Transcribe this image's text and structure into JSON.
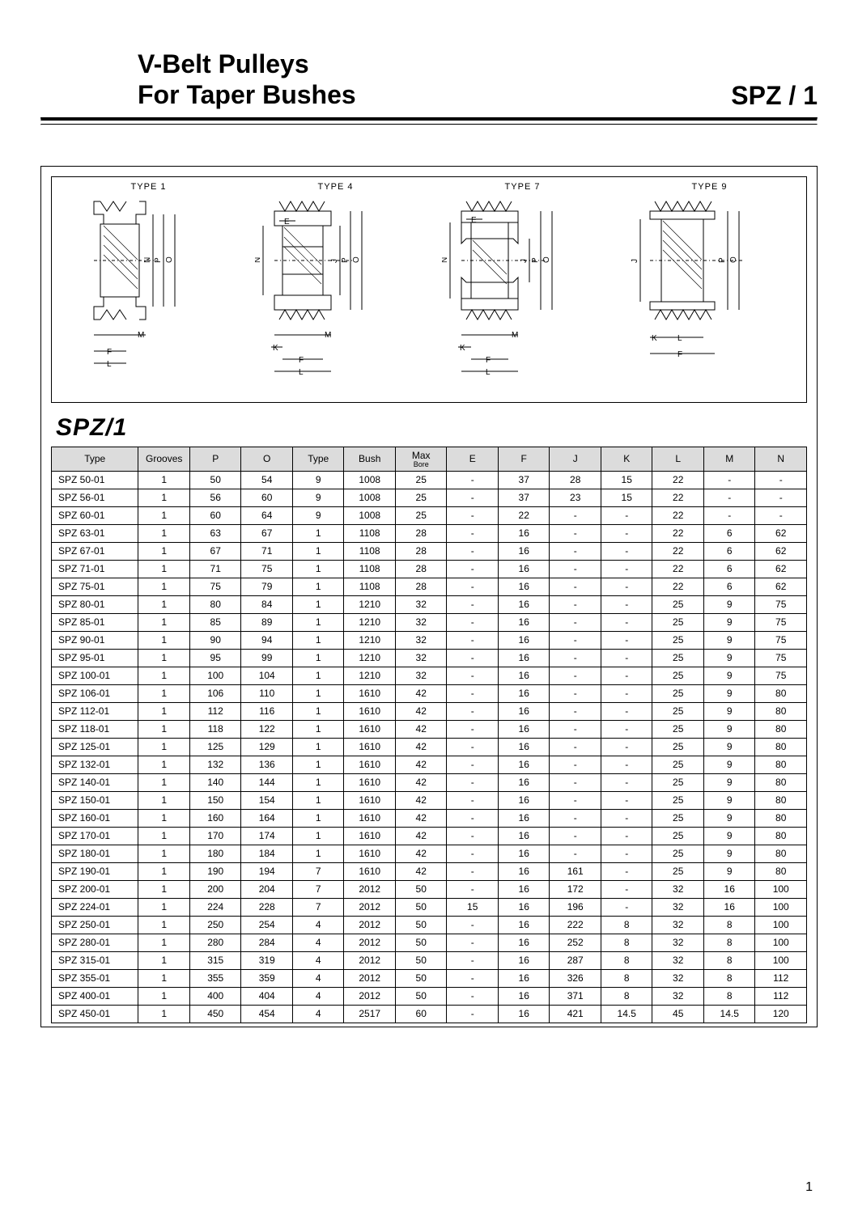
{
  "header": {
    "title_line1": "V-Belt  Pulleys",
    "title_line2": "For Taper Bushes",
    "code": "SPZ / 1"
  },
  "diagrams": {
    "labels": [
      "TYPE 1",
      "TYPE 4",
      "TYPE 7",
      "TYPE 9"
    ],
    "dim_letters": {
      "E": "E",
      "N": "N",
      "J": "J",
      "P": "P",
      "O": "O",
      "K": "K",
      "L": "L",
      "M": "M",
      "F": "F"
    }
  },
  "series_heading": "SPZ/1",
  "table": {
    "columns": [
      "Type",
      "Grooves",
      "P",
      "O",
      "Type",
      "Bush",
      "Max\nBore",
      "E",
      "F",
      "J",
      "K",
      "L",
      "M",
      "N"
    ],
    "col_widths_pct": [
      11,
      6.5,
      6.5,
      6.5,
      6.5,
      6.5,
      6.5,
      6.5,
      6.5,
      6.5,
      6.5,
      6.5,
      6.5,
      6.5
    ],
    "header_bg": "#dcdcdc",
    "border_color": "#000000",
    "rows": [
      [
        "SPZ 50-01",
        "1",
        "50",
        "54",
        "9",
        "1008",
        "25",
        "-",
        "37",
        "28",
        "15",
        "22",
        "-",
        "-"
      ],
      [
        "SPZ 56-01",
        "1",
        "56",
        "60",
        "9",
        "1008",
        "25",
        "-",
        "37",
        "23",
        "15",
        "22",
        "-",
        "-"
      ],
      [
        "SPZ 60-01",
        "1",
        "60",
        "64",
        "9",
        "1008",
        "25",
        "-",
        "22",
        "-",
        "-",
        "22",
        "-",
        "-"
      ],
      [
        "SPZ 63-01",
        "1",
        "63",
        "67",
        "1",
        "1108",
        "28",
        "-",
        "16",
        "-",
        "-",
        "22",
        "6",
        "62"
      ],
      [
        "SPZ 67-01",
        "1",
        "67",
        "71",
        "1",
        "1108",
        "28",
        "-",
        "16",
        "-",
        "-",
        "22",
        "6",
        "62"
      ],
      [
        "SPZ 71-01",
        "1",
        "71",
        "75",
        "1",
        "1108",
        "28",
        "-",
        "16",
        "-",
        "-",
        "22",
        "6",
        "62"
      ],
      [
        "SPZ 75-01",
        "1",
        "75",
        "79",
        "1",
        "1108",
        "28",
        "-",
        "16",
        "-",
        "-",
        "22",
        "6",
        "62"
      ],
      [
        "SPZ 80-01",
        "1",
        "80",
        "84",
        "1",
        "1210",
        "32",
        "-",
        "16",
        "-",
        "-",
        "25",
        "9",
        "75"
      ],
      [
        "SPZ 85-01",
        "1",
        "85",
        "89",
        "1",
        "1210",
        "32",
        "-",
        "16",
        "-",
        "-",
        "25",
        "9",
        "75"
      ],
      [
        "SPZ 90-01",
        "1",
        "90",
        "94",
        "1",
        "1210",
        "32",
        "-",
        "16",
        "-",
        "-",
        "25",
        "9",
        "75"
      ],
      [
        "SPZ 95-01",
        "1",
        "95",
        "99",
        "1",
        "1210",
        "32",
        "-",
        "16",
        "-",
        "-",
        "25",
        "9",
        "75"
      ],
      [
        "SPZ 100-01",
        "1",
        "100",
        "104",
        "1",
        "1210",
        "32",
        "-",
        "16",
        "-",
        "-",
        "25",
        "9",
        "75"
      ],
      [
        "SPZ 106-01",
        "1",
        "106",
        "110",
        "1",
        "1610",
        "42",
        "-",
        "16",
        "-",
        "-",
        "25",
        "9",
        "80"
      ],
      [
        "SPZ 112-01",
        "1",
        "112",
        "116",
        "1",
        "1610",
        "42",
        "-",
        "16",
        "-",
        "-",
        "25",
        "9",
        "80"
      ],
      [
        "SPZ 118-01",
        "1",
        "118",
        "122",
        "1",
        "1610",
        "42",
        "-",
        "16",
        "-",
        "-",
        "25",
        "9",
        "80"
      ],
      [
        "SPZ 125-01",
        "1",
        "125",
        "129",
        "1",
        "1610",
        "42",
        "-",
        "16",
        "-",
        "-",
        "25",
        "9",
        "80"
      ],
      [
        "SPZ 132-01",
        "1",
        "132",
        "136",
        "1",
        "1610",
        "42",
        "-",
        "16",
        "-",
        "-",
        "25",
        "9",
        "80"
      ],
      [
        "SPZ 140-01",
        "1",
        "140",
        "144",
        "1",
        "1610",
        "42",
        "-",
        "16",
        "-",
        "-",
        "25",
        "9",
        "80"
      ],
      [
        "SPZ 150-01",
        "1",
        "150",
        "154",
        "1",
        "1610",
        "42",
        "-",
        "16",
        "-",
        "-",
        "25",
        "9",
        "80"
      ],
      [
        "SPZ 160-01",
        "1",
        "160",
        "164",
        "1",
        "1610",
        "42",
        "-",
        "16",
        "-",
        "-",
        "25",
        "9",
        "80"
      ],
      [
        "SPZ 170-01",
        "1",
        "170",
        "174",
        "1",
        "1610",
        "42",
        "-",
        "16",
        "-",
        "-",
        "25",
        "9",
        "80"
      ],
      [
        "SPZ 180-01",
        "1",
        "180",
        "184",
        "1",
        "1610",
        "42",
        "-",
        "16",
        "-",
        "-",
        "25",
        "9",
        "80"
      ],
      [
        "SPZ 190-01",
        "1",
        "190",
        "194",
        "7",
        "1610",
        "42",
        "-",
        "16",
        "161",
        "-",
        "25",
        "9",
        "80"
      ],
      [
        "SPZ 200-01",
        "1",
        "200",
        "204",
        "7",
        "2012",
        "50",
        "-",
        "16",
        "172",
        "-",
        "32",
        "16",
        "100"
      ],
      [
        "SPZ 224-01",
        "1",
        "224",
        "228",
        "7",
        "2012",
        "50",
        "15",
        "16",
        "196",
        "-",
        "32",
        "16",
        "100"
      ],
      [
        "SPZ 250-01",
        "1",
        "250",
        "254",
        "4",
        "2012",
        "50",
        "-",
        "16",
        "222",
        "8",
        "32",
        "8",
        "100"
      ],
      [
        "SPZ 280-01",
        "1",
        "280",
        "284",
        "4",
        "2012",
        "50",
        "-",
        "16",
        "252",
        "8",
        "32",
        "8",
        "100"
      ],
      [
        "SPZ 315-01",
        "1",
        "315",
        "319",
        "4",
        "2012",
        "50",
        "-",
        "16",
        "287",
        "8",
        "32",
        "8",
        "100"
      ],
      [
        "SPZ 355-01",
        "1",
        "355",
        "359",
        "4",
        "2012",
        "50",
        "-",
        "16",
        "326",
        "8",
        "32",
        "8",
        "112"
      ],
      [
        "SPZ 400-01",
        "1",
        "400",
        "404",
        "4",
        "2012",
        "50",
        "-",
        "16",
        "371",
        "8",
        "32",
        "8",
        "112"
      ],
      [
        "SPZ 450-01",
        "1",
        "450",
        "454",
        "4",
        "2517",
        "60",
        "-",
        "16",
        "421",
        "14.5",
        "45",
        "14.5",
        "120"
      ]
    ]
  },
  "page_number": "1"
}
